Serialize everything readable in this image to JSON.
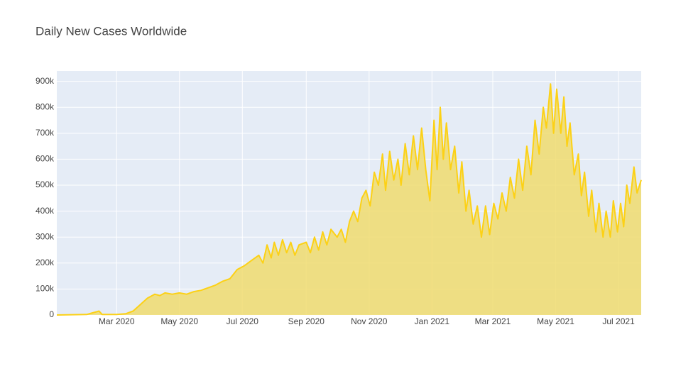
{
  "chart_data": {
    "type": "area",
    "title": "Daily New Cases Worldwide",
    "x": [
      "2020-01-03",
      "2020-02-01",
      "2020-02-13",
      "2020-02-16",
      "2020-03-01",
      "2020-03-10",
      "2020-03-17",
      "2020-03-24",
      "2020-03-31",
      "2020-04-07",
      "2020-04-12",
      "2020-04-17",
      "2020-04-24",
      "2020-05-01",
      "2020-05-08",
      "2020-05-15",
      "2020-05-22",
      "2020-05-29",
      "2020-06-05",
      "2020-06-12",
      "2020-06-19",
      "2020-06-26",
      "2020-07-03",
      "2020-07-10",
      "2020-07-17",
      "2020-07-21",
      "2020-07-25",
      "2020-07-29",
      "2020-08-01",
      "2020-08-05",
      "2020-08-09",
      "2020-08-13",
      "2020-08-17",
      "2020-08-21",
      "2020-08-25",
      "2020-09-01",
      "2020-09-05",
      "2020-09-09",
      "2020-09-13",
      "2020-09-17",
      "2020-09-21",
      "2020-09-25",
      "2020-10-01",
      "2020-10-05",
      "2020-10-09",
      "2020-10-13",
      "2020-10-17",
      "2020-10-21",
      "2020-10-25",
      "2020-10-29",
      "2020-11-02",
      "2020-11-06",
      "2020-11-10",
      "2020-11-14",
      "2020-11-17",
      "2020-11-21",
      "2020-11-25",
      "2020-11-29",
      "2020-12-02",
      "2020-12-06",
      "2020-12-10",
      "2020-12-14",
      "2020-12-18",
      "2020-12-22",
      "2020-12-26",
      "2020-12-30",
      "2021-01-03",
      "2021-01-06",
      "2021-01-09",
      "2021-01-12",
      "2021-01-15",
      "2021-01-19",
      "2021-01-23",
      "2021-01-27",
      "2021-01-30",
      "2021-02-03",
      "2021-02-06",
      "2021-02-10",
      "2021-02-14",
      "2021-02-18",
      "2021-02-22",
      "2021-02-26",
      "2021-03-02",
      "2021-03-06",
      "2021-03-10",
      "2021-03-14",
      "2021-03-18",
      "2021-03-22",
      "2021-03-26",
      "2021-03-30",
      "2021-04-03",
      "2021-04-07",
      "2021-04-11",
      "2021-04-15",
      "2021-04-19",
      "2021-04-22",
      "2021-04-26",
      "2021-04-29",
      "2021-05-02",
      "2021-05-06",
      "2021-05-09",
      "2021-05-12",
      "2021-05-15",
      "2021-05-19",
      "2021-05-23",
      "2021-05-26",
      "2021-05-29",
      "2021-06-02",
      "2021-06-05",
      "2021-06-09",
      "2021-06-12",
      "2021-06-16",
      "2021-06-19",
      "2021-06-23",
      "2021-06-26",
      "2021-06-30",
      "2021-07-03",
      "2021-07-06",
      "2021-07-09",
      "2021-07-12",
      "2021-07-16",
      "2021-07-19",
      "2021-07-23"
    ],
    "values": [
      0,
      2000,
      15000,
      2000,
      2000,
      5000,
      15000,
      40000,
      65000,
      80000,
      75000,
      85000,
      80000,
      85000,
      80000,
      90000,
      95000,
      105000,
      115000,
      130000,
      140000,
      175000,
      190000,
      210000,
      230000,
      200000,
      270000,
      220000,
      280000,
      230000,
      290000,
      240000,
      280000,
      230000,
      270000,
      280000,
      240000,
      300000,
      250000,
      320000,
      270000,
      330000,
      300000,
      330000,
      280000,
      360000,
      400000,
      360000,
      450000,
      480000,
      420000,
      550000,
      500000,
      620000,
      480000,
      630000,
      520000,
      600000,
      500000,
      660000,
      540000,
      690000,
      560000,
      720000,
      560000,
      440000,
      750000,
      560000,
      800000,
      600000,
      740000,
      560000,
      650000,
      470000,
      590000,
      400000,
      480000,
      350000,
      420000,
      300000,
      420000,
      310000,
      430000,
      370000,
      470000,
      400000,
      530000,
      450000,
      600000,
      480000,
      650000,
      540000,
      750000,
      620000,
      800000,
      720000,
      890000,
      700000,
      870000,
      700000,
      840000,
      650000,
      740000,
      540000,
      620000,
      460000,
      550000,
      380000,
      480000,
      320000,
      430000,
      300000,
      400000,
      300000,
      440000,
      320000,
      430000,
      340000,
      500000,
      430000,
      570000,
      470000,
      520000
    ],
    "line_color": "#fcd116",
    "fill_color": "rgba(240,220,110,0.85)",
    "xlim": [
      "2020-01-03",
      "2021-07-23"
    ],
    "xticks": [
      {
        "value": "2020-03-01",
        "label": "Mar 2020"
      },
      {
        "value": "2020-05-01",
        "label": "May 2020"
      },
      {
        "value": "2020-07-01",
        "label": "Jul 2020"
      },
      {
        "value": "2020-09-01",
        "label": "Sep 2020"
      },
      {
        "value": "2020-11-01",
        "label": "Nov 2020"
      },
      {
        "value": "2021-01-01",
        "label": "Jan 2021"
      },
      {
        "value": "2021-03-01",
        "label": "Mar 2021"
      },
      {
        "value": "2021-05-01",
        "label": "May 2021"
      },
      {
        "value": "2021-07-01",
        "label": "Jul 2021"
      }
    ],
    "ylim": [
      0,
      940000
    ],
    "yticks": [
      0,
      {
        "value": 100000,
        "label": "100k"
      },
      {
        "value": 200000,
        "label": "200k"
      },
      {
        "value": 300000,
        "label": "300k"
      },
      {
        "value": 400000,
        "label": "400k"
      },
      {
        "value": 500000,
        "label": "500k"
      },
      {
        "value": 600000,
        "label": "600k"
      },
      {
        "value": 700000,
        "label": "700k"
      },
      {
        "value": 800000,
        "label": "800k"
      },
      {
        "value": 900000,
        "label": "900k"
      }
    ],
    "grid": true
  }
}
